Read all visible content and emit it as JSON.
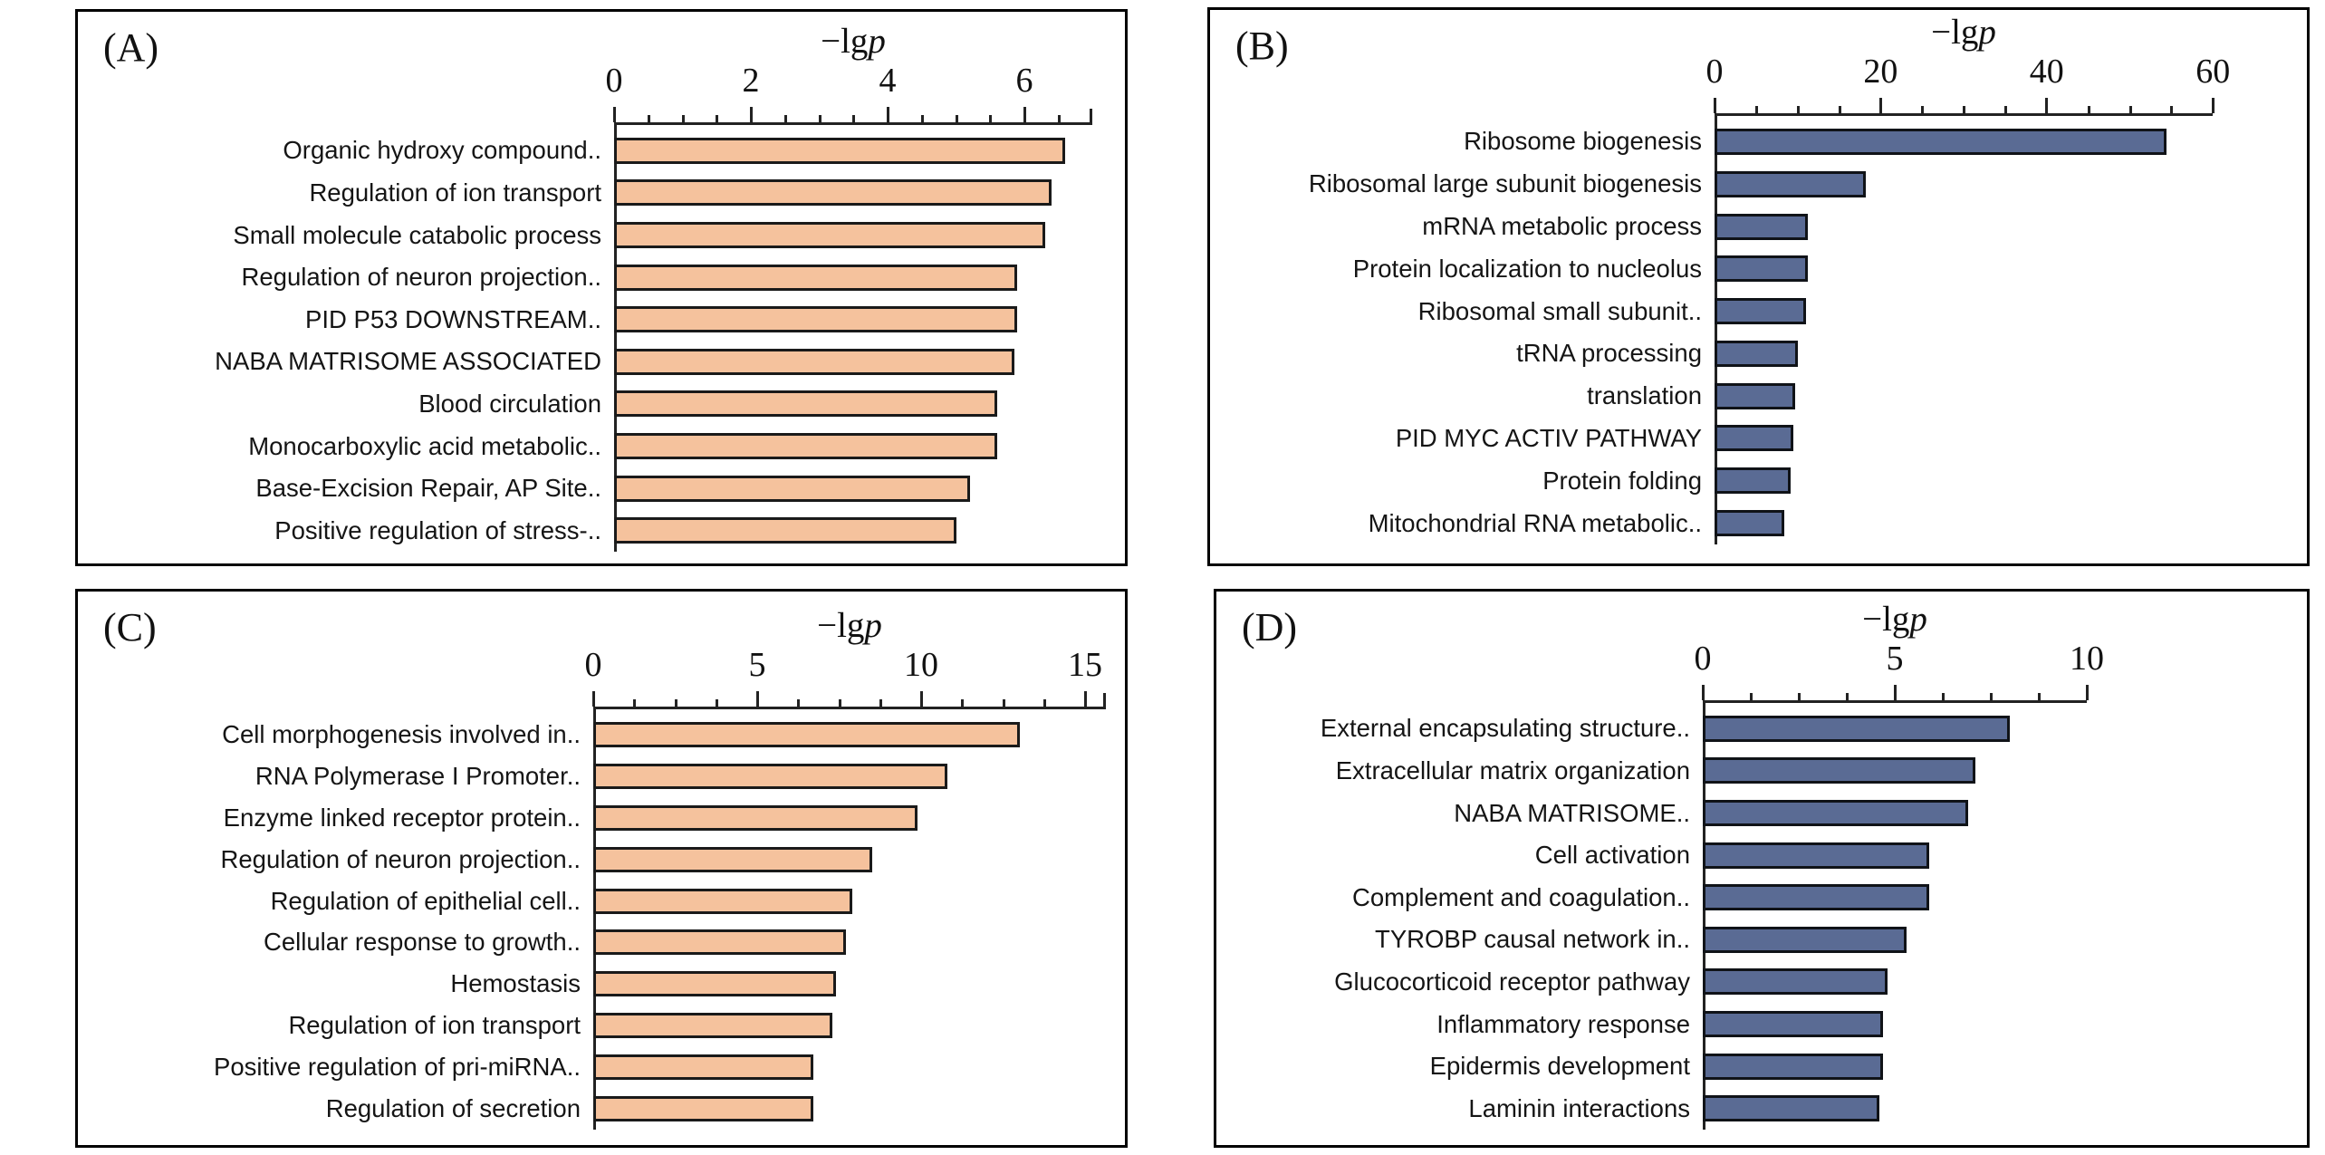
{
  "figure": {
    "background": "#ffffff",
    "description_axis_title": "−lg p",
    "panel_letters": [
      "(A)",
      "(B)",
      "(C)",
      "(D)"
    ]
  },
  "chart_data": [
    {
      "key": "A",
      "type": "bar",
      "orientation": "horizontal",
      "panel_label": "(A)",
      "axis_title_prefix": "−lg",
      "axis_title_var": "p",
      "xlim": [
        0,
        6.95
      ],
      "xticks": [
        0,
        2,
        4,
        6
      ],
      "minor_tick_step": 0.5,
      "grid": false,
      "bar_fill": "#f5c29d",
      "bar_stroke": "#1a1a1a",
      "categories": [
        "Organic hydroxy compound..",
        "Regulation of ion transport",
        "Small molecule catabolic process",
        "Regulation of neuron projection..",
        "PID P53 DOWNSTREAM..",
        "NABA MATRISOME ASSOCIATED",
        "Blood circulation",
        "Monocarboxylic acid metabolic..",
        "Base-Excision Repair, AP Site..",
        "Positive regulation of stress-.."
      ],
      "values": [
        6.6,
        6.4,
        6.3,
        5.9,
        5.9,
        5.85,
        5.6,
        5.6,
        5.2,
        5.0
      ]
    },
    {
      "key": "B",
      "type": "bar",
      "orientation": "horizontal",
      "panel_label": "(B)",
      "axis_title_prefix": "−lg",
      "axis_title_var": "p",
      "xlim": [
        0,
        60
      ],
      "xticks": [
        0,
        20,
        40,
        60
      ],
      "minor_tick_step": 5,
      "grid": false,
      "bar_fill": "#5a6b94",
      "bar_stroke": "#101318",
      "categories": [
        "Ribosome biogenesis",
        "Ribosomal large subunit biogenesis",
        "mRNA metabolic process",
        "Protein localization to nucleolus",
        "Ribosomal small subunit..",
        "tRNA processing",
        "translation",
        "PID MYC ACTIV PATHWAY",
        "Protein folding",
        "Mitochondrial RNA metabolic.."
      ],
      "values": [
        54.4,
        18.2,
        11.2,
        11.2,
        11.0,
        10.0,
        9.7,
        9.5,
        9.2,
        8.4
      ]
    },
    {
      "key": "C",
      "type": "bar",
      "orientation": "horizontal",
      "panel_label": "(C)",
      "axis_title_prefix": "−lg",
      "axis_title_var": "p",
      "xlim": [
        0,
        15.6
      ],
      "xticks": [
        0,
        5,
        10,
        15
      ],
      "minor_tick_step": 1.25,
      "grid": false,
      "bar_fill": "#f5c29d",
      "bar_stroke": "#1a1a1a",
      "categories": [
        "Cell morphogenesis involved in..",
        "RNA Polymerase I Promoter..",
        "Enzyme linked receptor protein..",
        "Regulation of neuron projection..",
        "Regulation of epithelial cell..",
        "Cellular response to growth..",
        "Hemostasis",
        "Regulation of ion transport",
        "Positive regulation of pri-miRNA..",
        "Regulation of secretion"
      ],
      "values": [
        13.0,
        10.8,
        9.9,
        8.5,
        7.9,
        7.7,
        7.4,
        7.3,
        6.7,
        6.7
      ]
    },
    {
      "key": "D",
      "type": "bar",
      "orientation": "horizontal",
      "panel_label": "(D)",
      "axis_title_prefix": "−lg",
      "axis_title_var": "p",
      "xlim": [
        0,
        10
      ],
      "xticks": [
        0,
        5,
        10
      ],
      "minor_tick_step": 1.25,
      "grid": false,
      "bar_fill": "#5a6b94",
      "bar_stroke": "#101318",
      "categories": [
        "External encapsulating structure..",
        "Extracellular matrix organization",
        "NABA MATRISOME..",
        "Cell activation",
        "Complement and coagulation..",
        "TYROBP causal network in..",
        "Glucocorticoid receptor pathway",
        "Inflammatory response",
        "Epidermis development",
        "Laminin interactions"
      ],
      "values": [
        8.0,
        7.1,
        6.9,
        5.9,
        5.9,
        5.3,
        4.8,
        4.7,
        4.7,
        4.6
      ]
    }
  ]
}
